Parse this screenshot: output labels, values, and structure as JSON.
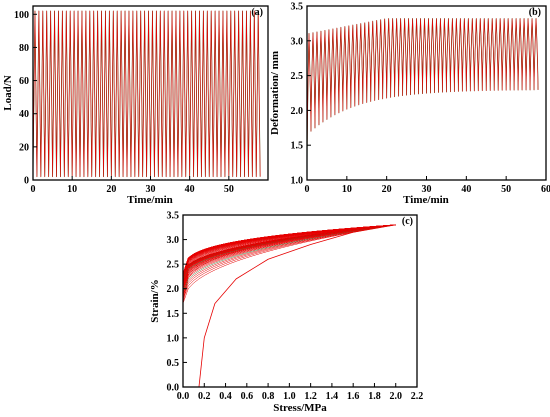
{
  "chart_data": [
    {
      "panel": "(a)",
      "type": "line",
      "xlabel": "Time/min",
      "ylabel": "Load/N",
      "xlim": [
        0,
        60
      ],
      "ylim": [
        0,
        105
      ],
      "xticks": [
        "0",
        "10",
        "20",
        "30",
        "40",
        "50"
      ],
      "yticks": [
        "0",
        "20",
        "40",
        "60",
        "80",
        "100"
      ],
      "grid": false,
      "colors": {
        "line": "#e60000",
        "accent": "#3f7f3f"
      },
      "series": [
        {
          "cycle_period_min": 1.0,
          "min": 2,
          "max": 102,
          "t_start": 0,
          "t_end": 58,
          "cycles": 58
        }
      ]
    },
    {
      "panel": "(b)",
      "type": "line",
      "xlabel": "Time/min",
      "ylabel": "Deformation/ mm",
      "xlim": [
        0,
        60
      ],
      "ylim": [
        1.0,
        3.5
      ],
      "xticks": [
        "0",
        "10",
        "20",
        "30",
        "40",
        "50",
        "60"
      ],
      "yticks": [
        "1.0",
        "1.5",
        "2.0",
        "2.5",
        "3.0",
        "3.5"
      ],
      "grid": false,
      "colors": {
        "line": "#e60000",
        "accent": "#3f7f3f"
      },
      "series": [
        {
          "cycle_period_min": 1.0,
          "t_start": 0,
          "t_end": 58,
          "max_start": 3.1,
          "max_end": 3.32,
          "min_start": 1.0,
          "min_after_first_cycle": 1.7,
          "min_end": 2.3
        }
      ]
    },
    {
      "panel": "(c)",
      "type": "line",
      "xlabel": "Stress/MPa",
      "ylabel": "Strain/%",
      "xlim": [
        0.0,
        2.2
      ],
      "ylim": [
        0.0,
        3.5
      ],
      "xticks": [
        "0.0",
        "0.2",
        "0.4",
        "0.6",
        "0.8",
        "1.0",
        "1.2",
        "1.4",
        "1.6",
        "1.8",
        "2.0",
        "2.2"
      ],
      "yticks": [
        "0.0",
        "0.5",
        "1.0",
        "1.5",
        "2.0",
        "2.5",
        "3.0",
        "3.5"
      ],
      "grid": false,
      "colors": {
        "line": "#e60000",
        "accent": "#3f7f3f"
      },
      "series": [
        {
          "first_loading": [
            [
              0.15,
              0.0
            ],
            [
              0.17,
              0.4
            ],
            [
              0.2,
              1.0
            ],
            [
              0.3,
              1.7
            ],
            [
              0.5,
              2.2
            ],
            [
              0.8,
              2.6
            ],
            [
              1.2,
              2.9
            ],
            [
              1.6,
              3.15
            ],
            [
              2.0,
              3.3
            ]
          ],
          "stress_max": 2.0,
          "strain_max": 3.3,
          "residual_strain_first_unload": 1.7,
          "residual_strain_last_unload": 2.3,
          "cycles": 58
        }
      ]
    }
  ]
}
